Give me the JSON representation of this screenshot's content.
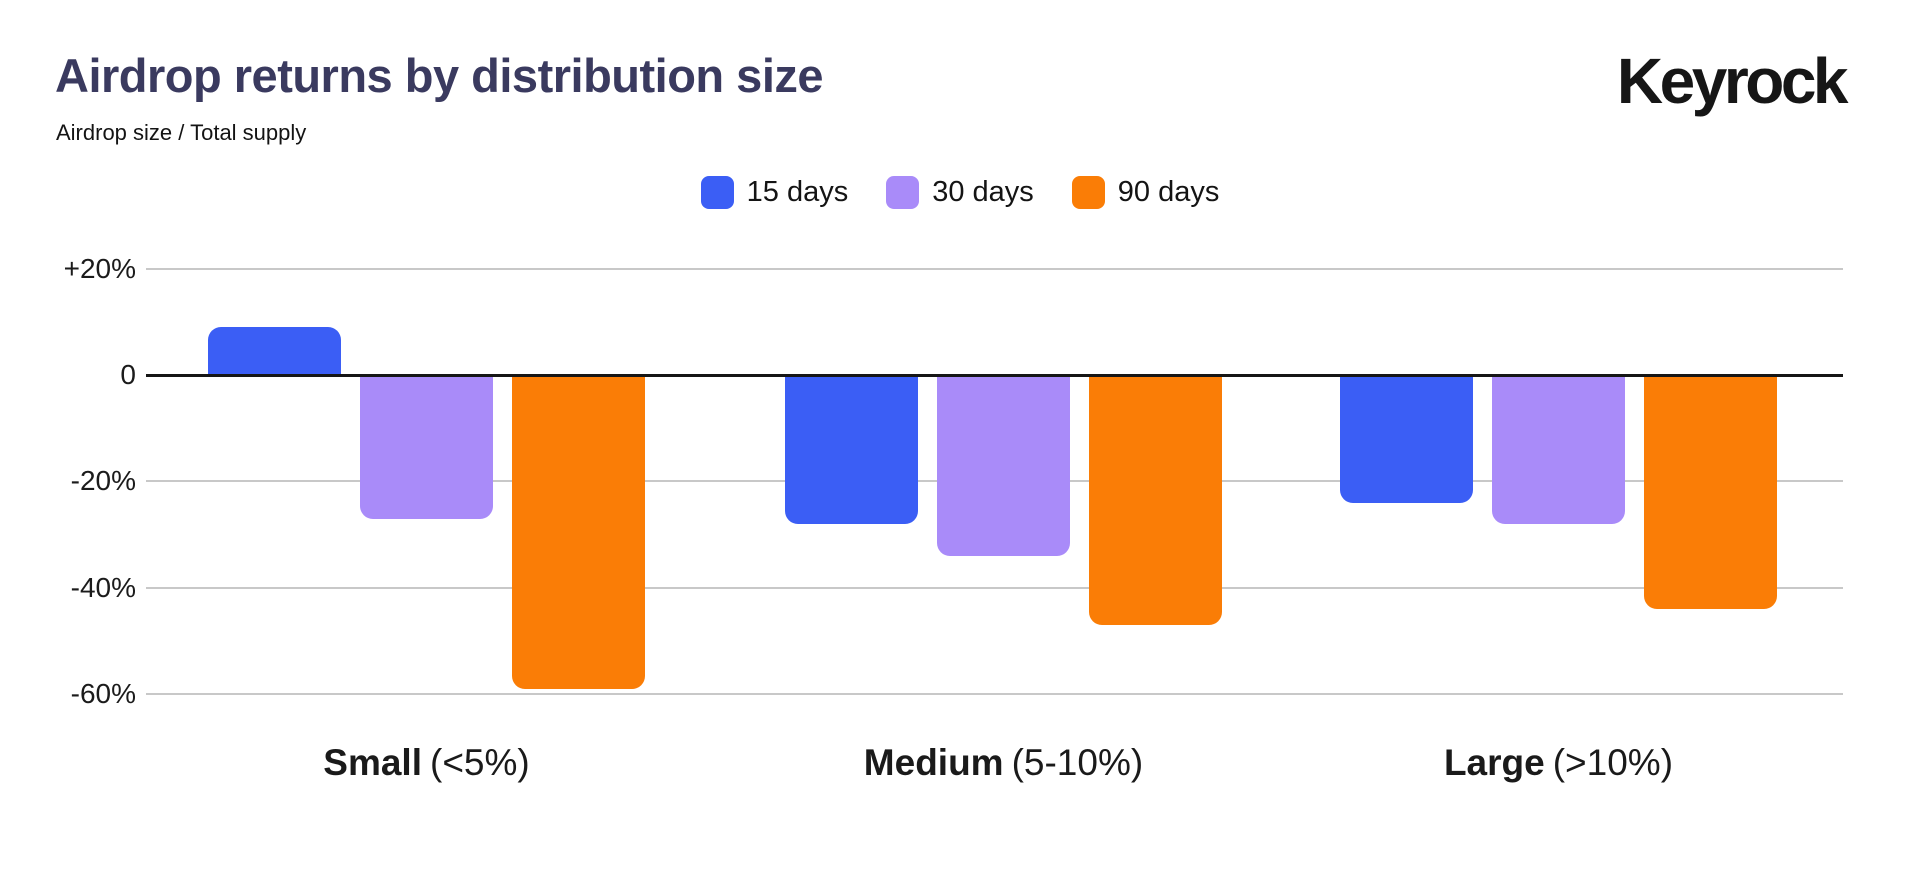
{
  "header": {
    "title": "Airdrop returns by distribution size",
    "subtitle": "Airdrop size / Total supply",
    "brand": "Keyrock"
  },
  "colors": {
    "title": "#3A3A5F",
    "text": "#141414",
    "grid": "#C8C8C8",
    "zero_line": "#161616",
    "background": "#FFFFFF",
    "series_blue": "#3B5EF5",
    "series_purple": "#A98BF9",
    "series_orange": "#FA7D06"
  },
  "chart_data": {
    "type": "bar",
    "title": "Airdrop returns by distribution size",
    "subtitle": "Airdrop size / Total supply",
    "unit": "%",
    "categories": [
      {
        "name": "Small",
        "qualifier": "(<5%)"
      },
      {
        "name": "Medium",
        "qualifier": "(5-10%)"
      },
      {
        "name": "Large",
        "qualifier": "(>10%)"
      }
    ],
    "series": [
      {
        "name": "15 days",
        "color": "#3B5EF5",
        "values": [
          9,
          -28,
          -24
        ]
      },
      {
        "name": "30 days",
        "color": "#A98BF9",
        "values": [
          -27,
          -34,
          -28
        ]
      },
      {
        "name": "90 days",
        "color": "#FA7D06",
        "values": [
          -59,
          -47,
          -44
        ]
      }
    ],
    "y_ticks": [
      {
        "label": "+20%",
        "value": 20
      },
      {
        "label": "0",
        "value": 0
      },
      {
        "label": "-20%",
        "value": -20
      },
      {
        "label": "-40%",
        "value": -40
      },
      {
        "label": "-60%",
        "value": -60
      }
    ],
    "ylim": [
      -65,
      25
    ],
    "grid": true,
    "legend_position": "top-center"
  }
}
